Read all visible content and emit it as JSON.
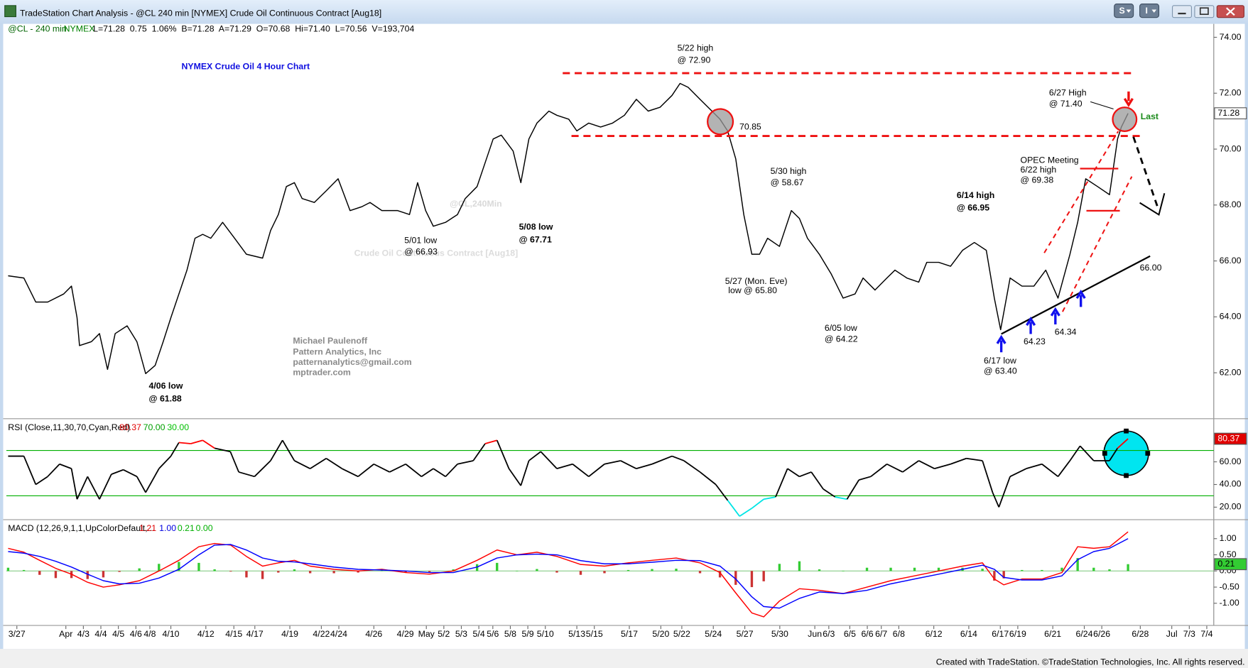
{
  "window": {
    "title": "TradeStation Chart Analysis - @CL 240 min [NYMEX] Crude Oil Continuous Contract [Aug18]",
    "toolbar_buttons": [
      "S",
      "I"
    ]
  },
  "status_line": {
    "symbol": "@CL - 240 min",
    "exchange": "NYMEX",
    "quote": "L=71.28  0.75  1.06%  B=71.28  A=71.29  O=70.68  Hi=71.40  L=70.56  V=193,704"
  },
  "chart_data": [
    {
      "type": "line",
      "title": "NYMEX Crude Oil 4 Hour Chart",
      "watermark": [
        "@CL,240Min",
        "Crude Oil Continuous Contract [Aug18]"
      ],
      "color": "#000000",
      "x": [
        0.5,
        5,
        8.4,
        11.8,
        16.4,
        18.6,
        20.2,
        20.9,
        24.3,
        26.6,
        28.9,
        31.1,
        34.5,
        37.3,
        39.8,
        42.5,
        44.8,
        47,
        49.3,
        51.6,
        53.9,
        56.1,
        58.4,
        61.8,
        65.2,
        68.6,
        73.2,
        75.5,
        77.7,
        80,
        82.3,
        84.5,
        88,
        91.4,
        94.8,
        98.2,
        101.6,
        103.9,
        107.3,
        111.8,
        115.2,
        117.5,
        119.8,
        122,
        125.5,
        128.9,
        131.1,
        134.5,
        136.8,
        139.1,
        141.4,
        144.8,
        147,
        149.3,
        151.6,
        155,
        157.3,
        160.7,
        163,
        166.4,
        169.8,
        173.2,
        176.6,
        180,
        183.4,
        186.8,
        190.2,
        192.5,
        194.8,
        198.2,
        201.6,
        203.9,
        206.1,
        208.4,
        210.7,
        213,
        215.2,
        217.5,
        220.9,
        224.3,
        226.6,
        228.9,
        232.3,
        235.7,
        239.1,
        242.5,
        244.8,
        248.2,
        251.6,
        253.9,
        257.3,
        260.7,
        263,
        266.4,
        269.8,
        273.2,
        276.6,
        280,
        282.3,
        284.1,
        286.8,
        290.2,
        293.6,
        297,
        300.5,
        303.9,
        306.1,
        308.4,
        311.8,
        315.2,
        317.5,
        318.6,
        320.5
      ],
      "values": [
        65.47,
        65.39,
        64.53,
        64.53,
        64.82,
        65.1,
        63.97,
        62.97,
        63.11,
        63.4,
        62.12,
        63.4,
        63.68,
        63.11,
        61.97,
        62.26,
        63.11,
        63.97,
        64.82,
        65.67,
        66.81,
        66.95,
        66.81,
        67.38,
        66.81,
        66.24,
        66.1,
        67.09,
        67.66,
        68.66,
        68.8,
        68.23,
        68.09,
        68.51,
        68.94,
        67.8,
        67.94,
        68.09,
        67.8,
        67.8,
        67.66,
        68.8,
        67.8,
        67.24,
        67.38,
        67.66,
        68.23,
        68.66,
        69.51,
        70.36,
        70.5,
        69.93,
        68.8,
        70.36,
        70.93,
        71.36,
        71.21,
        71.07,
        70.65,
        70.93,
        70.79,
        70.93,
        71.21,
        71.78,
        71.36,
        71.5,
        71.92,
        72.35,
        72.21,
        71.78,
        71.36,
        71.07,
        70.65,
        69.65,
        67.66,
        66.24,
        66.24,
        66.81,
        66.52,
        67.8,
        67.52,
        66.81,
        66.24,
        65.53,
        64.67,
        64.82,
        65.39,
        64.96,
        65.39,
        65.67,
        65.39,
        65.24,
        65.95,
        65.95,
        65.81,
        66.38,
        66.66,
        66.38,
        64.67,
        63.54,
        65.39,
        65.1,
        65.1,
        65.67,
        64.67,
        66.24,
        67.38,
        68.94,
        68.66,
        68.37,
        70.36,
        70.79,
        71.28
      ],
      "xlim": [
        0,
        345
      ],
      "ylim": [
        60.4,
        74.48
      ],
      "yticks": [
        {
          "value": 62,
          "label": "62.00"
        },
        {
          "value": 64,
          "label": "64.00"
        },
        {
          "value": 66,
          "label": "66.00"
        },
        {
          "value": 68,
          "label": "68.00"
        },
        {
          "value": 70,
          "label": "70.00"
        },
        {
          "value": 72,
          "label": "72.00"
        },
        {
          "value": 74,
          "label": "74.00"
        }
      ],
      "annotations": [
        "5/22 high",
        "@ 72.90",
        "70.85",
        "5/30 high",
        "@ 58.67",
        "6/14 high",
        "@ 66.95",
        "OPEC Meeting",
        "6/22 high",
        "@ 69.38",
        "6/27 High",
        "@ 71.40",
        "Last",
        "66.00",
        "5/01 low",
        "@ 66.93",
        "5/08 low",
        "@ 67.71",
        "5/27 (Mon. Eve)",
        "low @ 65.80",
        "6/05 low",
        "@ 64.22",
        "6/17 low",
        "@ 63.40",
        "64.23",
        "64.34",
        "4/06 low",
        "@ 61.88",
        "Michael Paulenoff",
        "Pattern Analytics, Inc",
        "patternanalytics@gmail.com",
        "mptrader.com"
      ]
    },
    {
      "type": "line",
      "indicator_label": "RSI (Close,11,30,70,Cyan,Red)",
      "readouts": [
        80.37,
        {
          "value": 70,
          "label": "70.00"
        },
        {
          "value": 30,
          "label": "30.00"
        }
      ],
      "readout_colors": [
        "#e00000",
        "#00a000",
        "#00c000"
      ],
      "colors": {
        "normal": "#000000",
        "overbought": "#ff0000",
        "oversold": "#00e5e5"
      },
      "levels": [
        30,
        70
      ],
      "level_color": "#00b000",
      "x": [
        0.5,
        5,
        8.4,
        11.8,
        15.2,
        18.6,
        20.2,
        23.2,
        26.6,
        30,
        33.4,
        37.3,
        39.8,
        43.6,
        47,
        49.3,
        52.7,
        56.1,
        59.5,
        64,
        66.4,
        70.9,
        75.5,
        78.9,
        82.3,
        86.8,
        91.4,
        95.9,
        100.5,
        105,
        109.5,
        114.1,
        118.6,
        122,
        125.5,
        128.9,
        133.4,
        136.8,
        140.2,
        143.6,
        147,
        149.3,
        152.7,
        157.3,
        161.8,
        166.4,
        170.9,
        175.5,
        180,
        184.5,
        190.2,
        193.6,
        198.2,
        202.7,
        206.1,
        209.5,
        213,
        216.4,
        219.8,
        223.2,
        226.6,
        230,
        233.4,
        236.8,
        240.2,
        243.6,
        247,
        251.6,
        256.1,
        260.7,
        265.2,
        269.8,
        274.3,
        278.9,
        281.8,
        283.6,
        286.8,
        291.4,
        295.9,
        300.5,
        303.9,
        306.8,
        310.7,
        315.2,
        317.5,
        320.5
      ],
      "values": [
        65,
        65,
        40,
        47,
        58,
        54,
        27,
        47,
        27,
        49,
        53,
        47,
        33,
        54,
        65,
        77,
        76,
        79,
        72,
        69,
        51,
        47,
        61,
        79,
        61,
        54,
        63,
        54,
        47,
        58,
        51,
        58,
        47,
        54,
        47,
        58,
        61,
        76,
        79,
        54,
        39,
        61,
        69,
        54,
        58,
        47,
        58,
        61,
        54,
        58,
        65,
        61,
        51,
        40,
        26,
        12,
        19,
        27,
        29,
        54,
        47,
        51,
        36,
        29,
        27,
        44,
        47,
        58,
        51,
        61,
        54,
        58,
        63,
        61,
        33,
        20,
        47,
        54,
        58,
        47,
        61,
        74,
        61,
        61,
        72,
        80.37
      ],
      "xlim": [
        0,
        345
      ],
      "ylim": [
        10,
        97
      ],
      "yticks": [
        {
          "value": 20,
          "label": "20.00"
        },
        {
          "value": 40,
          "label": "40.00"
        },
        {
          "value": 60,
          "label": "60.00"
        }
      ]
    },
    {
      "type": "line",
      "indicator_label": "MACD (12,26,9,1,1,UpColorDefault,...",
      "readouts": [
        1.21,
        {
          "value": 1,
          "label": "1.00"
        },
        0.21,
        {
          "value": 0,
          "label": "0.00"
        }
      ],
      "readout_colors": [
        "#e00000",
        "#0000e0",
        "#00b000",
        "#00b000"
      ],
      "x": [
        0.5,
        5,
        9.5,
        14.1,
        18.6,
        23.2,
        27.7,
        32.3,
        38,
        43.6,
        49.3,
        55,
        59.5,
        64.1,
        68.6,
        73.2,
        77.7,
        82.3,
        86.8,
        93.6,
        100.5,
        107.3,
        114.1,
        120.9,
        127.7,
        134.5,
        140.2,
        145.9,
        151.6,
        157.3,
        164.1,
        170.9,
        177.7,
        184.5,
        191.4,
        198.2,
        203.9,
        208.4,
        213,
        216.4,
        220.9,
        226.6,
        232.3,
        239.1,
        245.9,
        252.7,
        259.5,
        266.4,
        273.2,
        278.9,
        282.3,
        285,
        290.2,
        295.9,
        301.6,
        306.1,
        310.7,
        315.2,
        320.5
      ],
      "series": [
        {
          "color": "#ff0000",
          "values": [
            0.7,
            0.58,
            0.33,
            0.08,
            -0.1,
            -0.35,
            -0.5,
            -0.43,
            -0.3,
            0,
            0.33,
            0.75,
            0.85,
            0.8,
            0.45,
            0.15,
            0.25,
            0.33,
            0.15,
            0.05,
            0,
            0.05,
            -0.05,
            -0.1,
            0,
            0.33,
            0.65,
            0.5,
            0.58,
            0.45,
            0.2,
            0.15,
            0.25,
            0.33,
            0.4,
            0.25,
            -0.05,
            -0.68,
            -1.3,
            -1.42,
            -0.93,
            -0.55,
            -0.6,
            -0.7,
            -0.5,
            -0.3,
            -0.15,
            0,
            0.15,
            0.25,
            -0.25,
            -0.43,
            -0.25,
            -0.25,
            -0.05,
            0.75,
            0.7,
            0.75,
            1.21
          ]
        },
        {
          "color": "#0000ff",
          "values": [
            0.6,
            0.55,
            0.45,
            0.3,
            0.12,
            -0.1,
            -0.3,
            -0.4,
            -0.38,
            -0.22,
            0.05,
            0.5,
            0.8,
            0.82,
            0.65,
            0.4,
            0.3,
            0.28,
            0.22,
            0.12,
            0.05,
            0.03,
            0,
            -0.05,
            -0.05,
            0.12,
            0.4,
            0.5,
            0.52,
            0.5,
            0.32,
            0.22,
            0.22,
            0.27,
            0.33,
            0.32,
            0.15,
            -0.25,
            -0.8,
            -1.1,
            -1.15,
            -0.85,
            -0.65,
            -0.7,
            -0.6,
            -0.4,
            -0.25,
            -0.1,
            0.05,
            0.18,
            0.05,
            -0.2,
            -0.28,
            -0.28,
            -0.15,
            0.35,
            0.6,
            0.7,
            1.0
          ]
        }
      ],
      "histogram": [
        0.1,
        0.03,
        -0.12,
        -0.22,
        -0.22,
        -0.25,
        -0.2,
        -0.03,
        0.08,
        0.22,
        0.28,
        0.25,
        0.05,
        -0.02,
        -0.2,
        -0.25,
        -0.05,
        0.05,
        -0.07,
        -0.07,
        -0.05,
        0.02,
        -0.05,
        -0.05,
        0.05,
        0.21,
        0.25,
        0,
        0.06,
        -0.05,
        -0.12,
        -0.07,
        0.03,
        0.06,
        0.07,
        -0.07,
        -0.2,
        -0.43,
        -0.5,
        -0.32,
        0.22,
        0.3,
        0.05,
        0,
        0.1,
        0.1,
        0.1,
        0.1,
        0.1,
        0.07,
        -0.3,
        -0.23,
        0.03,
        0.03,
        0.1,
        0.4,
        0.1,
        0.05,
        0.21
      ],
      "histogram_colors": [
        "#33cc33",
        "#cc3333"
      ],
      "xlim": [
        0,
        345
      ],
      "ylim": [
        -1.65,
        1.55
      ],
      "yticks": [
        {
          "value": -1,
          "label": "-1.00"
        },
        {
          "value": -0.5,
          "label": "-0.50"
        },
        {
          "value": 0,
          "label": "0.00"
        },
        {
          "value": 0.5,
          "label": "0.50"
        },
        {
          "value": 1,
          "label": "1.00"
        }
      ],
      "xticks": [
        {
          "value": 3,
          "label": "3/27"
        },
        {
          "value": 17,
          "label": "Apr"
        },
        {
          "value": 22,
          "label": "4/3"
        },
        {
          "value": 27,
          "label": "4/4"
        },
        {
          "value": 32,
          "label": "4/5"
        },
        {
          "value": 37,
          "label": "4/6"
        },
        {
          "value": 41,
          "label": "4/8"
        },
        {
          "value": 47,
          "label": "4/10"
        },
        {
          "value": 57,
          "label": "4/12"
        },
        {
          "value": 65,
          "label": "4/15"
        },
        {
          "value": 71,
          "label": "4/17"
        },
        {
          "value": 81,
          "label": "4/19"
        },
        {
          "value": 90,
          "label": "4/22"
        },
        {
          "value": 95,
          "label": "4/24"
        },
        {
          "value": 105,
          "label": "4/26"
        },
        {
          "value": 114,
          "label": "4/29"
        },
        {
          "value": 120,
          "label": "May"
        },
        {
          "value": 125,
          "label": "5/2"
        },
        {
          "value": 130,
          "label": "5/3"
        },
        {
          "value": 135,
          "label": "5/4"
        },
        {
          "value": 139,
          "label": "5/6"
        },
        {
          "value": 144,
          "label": "5/8"
        },
        {
          "value": 149,
          "label": "5/9"
        },
        {
          "value": 154,
          "label": "5/10"
        },
        {
          "value": 163,
          "label": "5/13"
        },
        {
          "value": 168,
          "label": "5/15"
        },
        {
          "value": 178,
          "label": "5/17"
        },
        {
          "value": 187,
          "label": "5/20"
        },
        {
          "value": 193,
          "label": "5/22"
        },
        {
          "value": 202,
          "label": "5/24"
        },
        {
          "value": 211,
          "label": "5/27"
        },
        {
          "value": 221,
          "label": "5/30"
        },
        {
          "value": 231,
          "label": "Jun"
        },
        {
          "value": 235,
          "label": "6/3"
        },
        {
          "value": 241,
          "label": "6/5"
        },
        {
          "value": 246,
          "label": "6/6"
        },
        {
          "value": 250,
          "label": "6/7"
        },
        {
          "value": 255,
          "label": "6/8"
        },
        {
          "value": 265,
          "label": "6/12"
        },
        {
          "value": 275,
          "label": "6/14"
        },
        {
          "value": 284,
          "label": "6/17"
        },
        {
          "value": 289,
          "label": "6/19"
        },
        {
          "value": 299,
          "label": "6/21"
        },
        {
          "value": 308,
          "label": "6/24"
        },
        {
          "value": 313,
          "label": "6/26"
        },
        {
          "value": 324,
          "label": "6/28"
        },
        {
          "value": 333,
          "label": "Jul"
        },
        {
          "value": 338,
          "label": "7/3"
        },
        {
          "value": 343,
          "label": "7/4"
        }
      ]
    }
  ],
  "footer": "Created with TradeStation. ©TradeStation Technologies, Inc. All rights reserved."
}
